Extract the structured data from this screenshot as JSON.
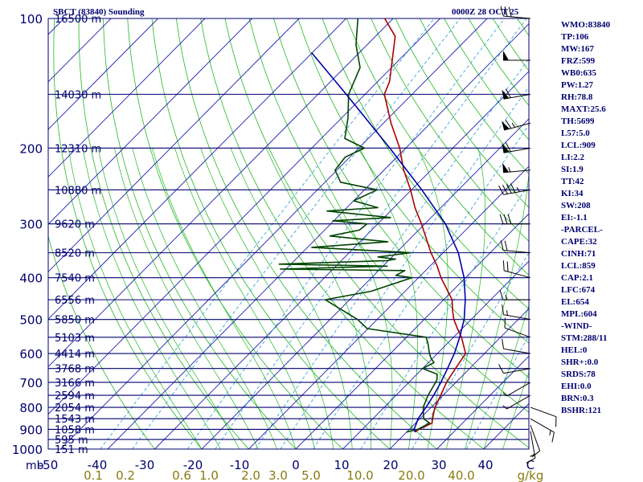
{
  "header": {
    "title": "SBCT (83840) Sounding",
    "datetime": "0000Z 28 OCT 25"
  },
  "stats_panel": [
    "WMO:83840",
    "TP:106",
    "MW:167",
    "FRZ:599",
    "WB0:635",
    "PW:1.27",
    "RH:78.8",
    "MAXT:25.6",
    "TH:5699",
    "L57:5.0",
    "LCL:909",
    "LI:2.2",
    "SI:1.9",
    "TT:42",
    "KI:34",
    "SW:208",
    "EI:-1.1",
    "-PARCEL-",
    "CAPE:32",
    "CINH:71",
    "LCL:859",
    "CAP:2.1",
    "LFC:674",
    "EL:654",
    "MPL:604",
    "-WIND-",
    "STM:288/11",
    "HEL:0",
    "SHR+:0.0",
    "SRDS:78",
    "EHI:0.0",
    "BRN:0.3",
    "BSHR:121"
  ],
  "chart_data": {
    "type": "line",
    "subtype": "skew-T log-P sounding",
    "y_axis": {
      "scale": "log",
      "unit_label": "mb",
      "ylim": [
        1000,
        100
      ],
      "pressure_ticks": [
        "100",
        "200",
        "300",
        "400",
        "500",
        "600",
        "700",
        "800",
        "900",
        "1000"
      ]
    },
    "x_axis": {
      "unit": "°C",
      "temperature_ticks": [
        "-50",
        "-40",
        "-30",
        "-20",
        "-10",
        "0",
        "10",
        "20",
        "30",
        "40",
        "C"
      ],
      "mixing_ratio_ticks": [
        "0.1",
        "0.2",
        "0.6",
        "1.0",
        "2.0",
        "3.0",
        "5.0",
        "10.0",
        "20.0",
        "40.0",
        "g/kg"
      ]
    },
    "height_labels": [
      {
        "p": 100,
        "label": "16500 m"
      },
      {
        "p": 150,
        "label": "14030 m"
      },
      {
        "p": 200,
        "label": "12310 m"
      },
      {
        "p": 250,
        "label": "10880 m"
      },
      {
        "p": 300,
        "label": "9620 m"
      },
      {
        "p": 350,
        "label": "8520 m"
      },
      {
        "p": 400,
        "label": "7540 m"
      },
      {
        "p": 450,
        "label": "6556 m"
      },
      {
        "p": 500,
        "label": "5850 m"
      },
      {
        "p": 550,
        "label": "5103 m"
      },
      {
        "p": 600,
        "label": "4414 m"
      },
      {
        "p": 650,
        "label": "3768 m"
      },
      {
        "p": 700,
        "label": "3166 m"
      },
      {
        "p": 750,
        "label": "2594 m"
      },
      {
        "p": 800,
        "label": "2054 m"
      },
      {
        "p": 850,
        "label": "1543 m"
      },
      {
        "p": 900,
        "label": "1058 m"
      },
      {
        "p": 950,
        "label": "595 m"
      },
      {
        "p": 1000,
        "label": "151 m"
      }
    ],
    "series": [
      {
        "color": "#aa0000",
        "points": [
          [
            913,
            21.8
          ],
          [
            900,
            22.0
          ],
          [
            870,
            23.5
          ],
          [
            850,
            22.6
          ],
          [
            800,
            20.8
          ],
          [
            750,
            19.5
          ],
          [
            700,
            18.0
          ],
          [
            650,
            17.0
          ],
          [
            600,
            16.0
          ],
          [
            550,
            11.7
          ],
          [
            525,
            9.0
          ],
          [
            500,
            6.3
          ],
          [
            475,
            4.0
          ],
          [
            450,
            1.8
          ],
          [
            400,
            -5.2
          ],
          [
            375,
            -8.6
          ],
          [
            350,
            -12.6
          ],
          [
            325,
            -16.5
          ],
          [
            300,
            -20.7
          ],
          [
            275,
            -25.5
          ],
          [
            250,
            -30.2
          ],
          [
            225,
            -35.8
          ],
          [
            200,
            -41.3
          ],
          [
            175,
            -48.4
          ],
          [
            150,
            -55.9
          ],
          [
            140,
            -57.5
          ],
          [
            125,
            -61.4
          ],
          [
            110,
            -65.8
          ],
          [
            100,
            -71.8
          ]
        ]
      },
      {
        "color": "#004400",
        "points": [
          [
            913,
            20.0
          ],
          [
            900,
            21.8
          ],
          [
            870,
            23.0
          ],
          [
            850,
            20.8
          ],
          [
            800,
            18.3
          ],
          [
            750,
            16.8
          ],
          [
            700,
            15.7
          ],
          [
            690,
            15.4
          ],
          [
            670,
            14.3
          ],
          [
            650,
            10.0
          ],
          [
            630,
            11.2
          ],
          [
            615,
            9.6
          ],
          [
            600,
            8.3
          ],
          [
            570,
            6.0
          ],
          [
            550,
            4.2
          ],
          [
            525,
            -10.2
          ],
          [
            500,
            -14.2
          ],
          [
            450,
            -25.2
          ],
          [
            430,
            -17.2
          ],
          [
            400,
            -11.4
          ],
          [
            395,
            -15.3
          ],
          [
            385,
            -14.4
          ],
          [
            382,
            -41.2
          ],
          [
            376,
            -19.1
          ],
          [
            372,
            -42.5
          ],
          [
            365,
            -20.3
          ],
          [
            362,
            -18.8
          ],
          [
            358,
            -23.0
          ],
          [
            350,
            -16.9
          ],
          [
            340,
            -39.1
          ],
          [
            330,
            -24.1
          ],
          [
            320,
            -37.6
          ],
          [
            310,
            -32.6
          ],
          [
            300,
            -32.3
          ],
          [
            295,
            -40.2
          ],
          [
            290,
            -28.6
          ],
          [
            280,
            -43.5
          ],
          [
            275,
            -33.4
          ],
          [
            265,
            -40.0
          ],
          [
            250,
            -37.3
          ],
          [
            240,
            -46.7
          ],
          [
            225,
            -50.4
          ],
          [
            210,
            -51.0
          ],
          [
            200,
            -48.8
          ],
          [
            190,
            -55.0
          ],
          [
            170,
            -58.7
          ],
          [
            150,
            -63.5
          ],
          [
            130,
            -66.7
          ],
          [
            115,
            -72.4
          ],
          [
            100,
            -77.5
          ]
        ]
      },
      {
        "color": "#0000aa",
        "points": [
          [
            913,
            21.8
          ],
          [
            900,
            21.0
          ],
          [
            870,
            20.2
          ],
          [
            850,
            19.6
          ],
          [
            800,
            18.9
          ],
          [
            750,
            18.0
          ],
          [
            700,
            16.8
          ],
          [
            650,
            15.3
          ],
          [
            600,
            13.6
          ],
          [
            550,
            11.3
          ],
          [
            500,
            8.5
          ],
          [
            450,
            4.6
          ],
          [
            400,
            -0.3
          ],
          [
            350,
            -6.8
          ],
          [
            300,
            -15.6
          ],
          [
            250,
            -27.8
          ],
          [
            200,
            -43.4
          ],
          [
            150,
            -64.0
          ],
          [
            120,
            -80.2
          ]
        ]
      }
    ],
    "wind_barbs": [
      {
        "p": 909,
        "dir": 170,
        "kt": 15
      },
      {
        "p": 880,
        "dir": 160,
        "kt": 10
      },
      {
        "p": 850,
        "dir": 120,
        "kt": 15
      },
      {
        "p": 800,
        "dir": 110,
        "kt": 10
      },
      {
        "p": 750,
        "dir": 240,
        "kt": 5
      },
      {
        "p": 700,
        "dir": 240,
        "kt": 5
      },
      {
        "p": 650,
        "dir": 260,
        "kt": 10
      },
      {
        "p": 600,
        "dir": 280,
        "kt": 10
      },
      {
        "p": 550,
        "dir": 290,
        "kt": 10
      },
      {
        "p": 500,
        "dir": 280,
        "kt": 15
      },
      {
        "p": 450,
        "dir": 270,
        "kt": 15
      },
      {
        "p": 400,
        "dir": 285,
        "kt": 20
      },
      {
        "p": 350,
        "dir": 275,
        "kt": 20
      },
      {
        "p": 300,
        "dir": 270,
        "kt": 30
      },
      {
        "p": 250,
        "dir": 260,
        "kt": 45
      },
      {
        "p": 225,
        "dir": 265,
        "kt": 55
      },
      {
        "p": 200,
        "dir": 260,
        "kt": 60
      },
      {
        "p": 175,
        "dir": 255,
        "kt": 65
      },
      {
        "p": 150,
        "dir": 260,
        "kt": 60
      },
      {
        "p": 125,
        "dir": 270,
        "kt": 50
      },
      {
        "p": 100,
        "dir": 275,
        "kt": 30
      }
    ]
  }
}
